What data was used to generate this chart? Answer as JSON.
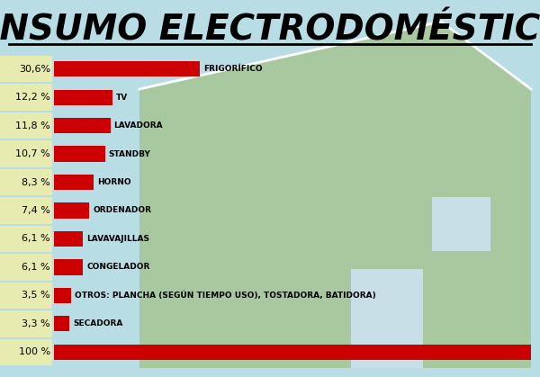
{
  "title": "CONSUMO ELECTRODOMÉSTICOS",
  "background_color": "#b8dde4",
  "bar_color": "#cc0000",
  "label_bg_color": "#e8ebb0",
  "house_color": "#a8c8a0",
  "house_outline_color": "#ffffff",
  "categories": [
    "30,6%",
    "12,2 %",
    "11,8 %",
    "10,7 %",
    "8,3 %",
    "7,4 %",
    "6,1 %",
    "6,1 %",
    "3,5 %",
    "3,3 %",
    "100 %"
  ],
  "labels": [
    "FRIGORÍFICO",
    "TV",
    "LAVADORA",
    "STANDBY",
    "HORNO",
    "ORDENADOR",
    "LAVAVAJILLAS",
    "CONGELADOR",
    "OTROS: PLANCHA (SEGÚN TIEMPO USO), TOSTADORA, BATIDORA)",
    "SECADORA",
    ""
  ],
  "values": [
    30.6,
    12.2,
    11.8,
    10.7,
    8.3,
    7.4,
    6.1,
    6.1,
    3.5,
    3.3,
    100
  ],
  "max_value": 100
}
